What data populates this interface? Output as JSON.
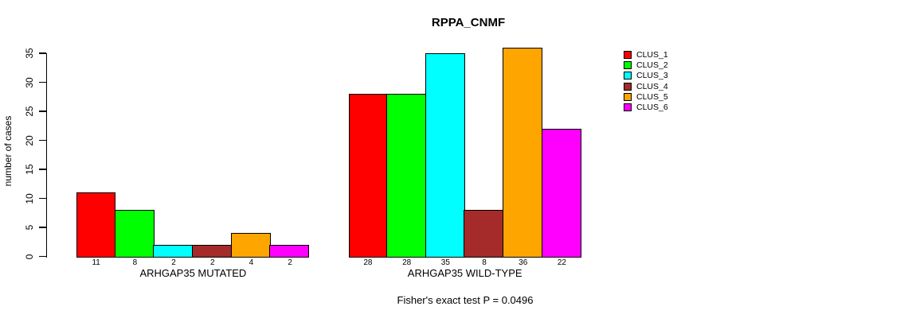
{
  "chart_data": {
    "type": "bar",
    "title": "RPPA_CNMF",
    "ylabel": "number of cases",
    "xlabel": "",
    "ylim": [
      0,
      35
    ],
    "yticks": [
      0,
      5,
      10,
      15,
      20,
      25,
      30,
      35
    ],
    "grid": false,
    "legend_position": "right",
    "legend": [
      {
        "label": "CLUS_1",
        "color": "#FF0000"
      },
      {
        "label": "CLUS_2",
        "color": "#00FF00"
      },
      {
        "label": "CLUS_3",
        "color": "#00FFFF"
      },
      {
        "label": "CLUS_4",
        "color": "#A52A2A"
      },
      {
        "label": "CLUS_5",
        "color": "#FFA500"
      },
      {
        "label": "CLUS_6",
        "color": "#FF00FF"
      }
    ],
    "groups": [
      {
        "label": "ARHGAP35 MUTATED",
        "values": [
          11,
          8,
          2,
          2,
          4,
          2
        ]
      },
      {
        "label": "ARHGAP35 WILD-TYPE",
        "values": [
          28,
          28,
          35,
          8,
          36,
          22
        ]
      }
    ],
    "bar_value_labels": [
      [
        11,
        8,
        2,
        2,
        4,
        2
      ],
      [
        28,
        28,
        35,
        8,
        36,
        22
      ]
    ],
    "annotation": "Fisher's exact test P = 0.0496"
  }
}
